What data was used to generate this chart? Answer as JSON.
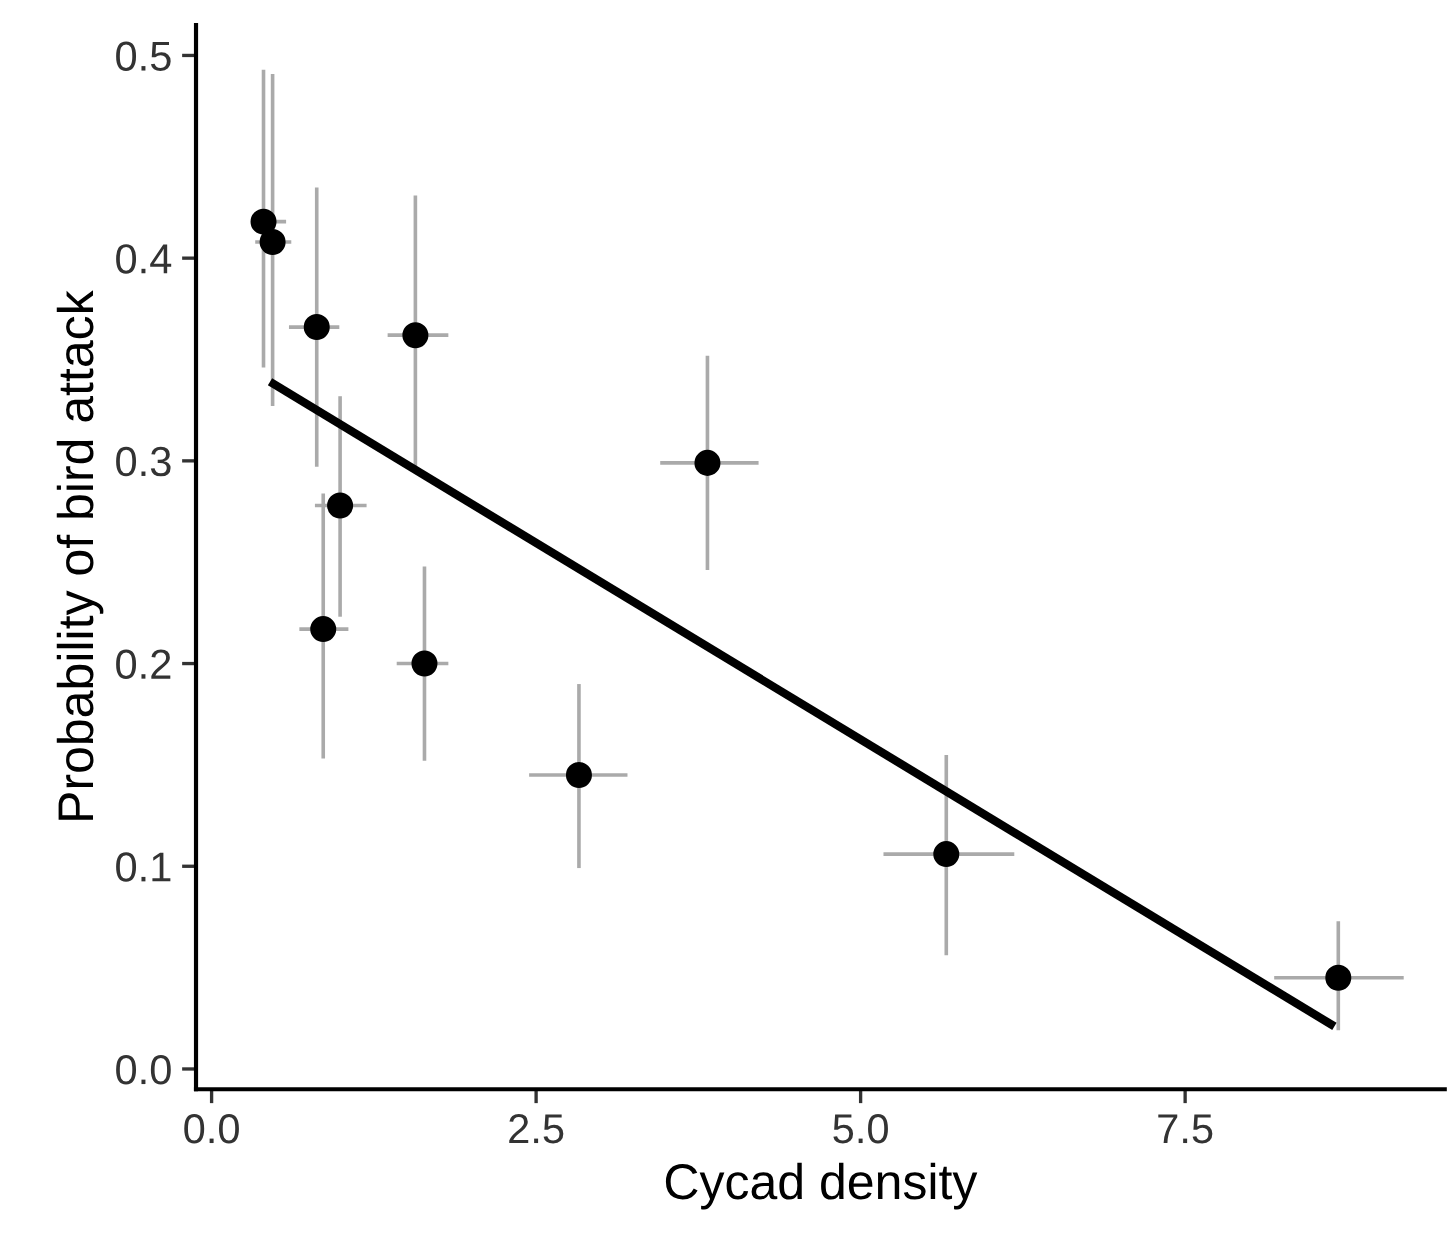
{
  "chart_data": {
    "type": "scatter",
    "xlabel": "Cycad density",
    "ylabel": "Probability of bird attack",
    "xlim": [
      -0.12,
      9.5
    ],
    "ylim": [
      -0.01,
      0.515
    ],
    "xticks": [
      {
        "value": 0,
        "label": "0.0"
      },
      {
        "value": 2.5,
        "label": "2.5"
      },
      {
        "value": 5,
        "label": "5.0"
      },
      {
        "value": 7.5,
        "label": "7.5"
      }
    ],
    "yticks": [
      {
        "value": 0,
        "label": "0.0"
      },
      {
        "value": 0.1,
        "label": "0.1"
      },
      {
        "value": 0.2,
        "label": "0.2"
      },
      {
        "value": 0.3,
        "label": "0.3"
      },
      {
        "value": 0.4,
        "label": "0.4"
      },
      {
        "value": 0.5,
        "label": "0.5"
      }
    ],
    "grid": false,
    "legend": false,
    "marker": "circle",
    "series": [
      {
        "color": "#000000",
        "x": [
          0.4,
          0.47,
          0.81,
          1.57,
          0.99,
          0.86,
          1.64,
          2.83,
          3.82,
          5.66,
          8.68
        ],
        "values": [
          0.418,
          0.408,
          0.366,
          0.362,
          0.278,
          0.217,
          0.2,
          0.145,
          0.299,
          0.106,
          0.045
        ],
        "errors": [
          [
            0.347,
            0.492
          ],
          [
            0.328,
            0.49
          ],
          [
            0.298,
            0.434
          ],
          [
            0.296,
            0.43
          ],
          [
            0.224,
            0.331
          ],
          [
            0.154,
            0.283
          ],
          [
            0.153,
            0.247
          ],
          [
            0.1,
            0.189
          ],
          [
            0.247,
            0.351
          ],
          [
            0.057,
            0.154
          ],
          [
            0.02,
            0.072
          ]
        ],
        "xerrors": [
          [
            0.33,
            0.56
          ],
          [
            0.35,
            0.6
          ],
          [
            0.61,
            0.97
          ],
          [
            1.37,
            1.81
          ],
          [
            0.81,
            1.18
          ],
          [
            0.69,
            1.04
          ],
          [
            1.44,
            1.81
          ],
          [
            2.46,
            3.19
          ],
          [
            3.47,
            4.2
          ],
          [
            5.19,
            6.17
          ],
          [
            8.2,
            9.17
          ]
        ]
      },
      {
        "type": "line",
        "color": "#000000",
        "x": [
          0.45,
          8.65
        ],
        "values": [
          0.339,
          0.021
        ],
        "marker": "none",
        "line_style": "solid"
      }
    ]
  }
}
